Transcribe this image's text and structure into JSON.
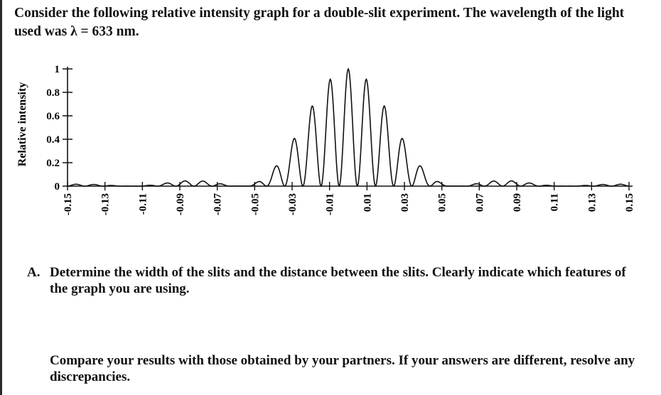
{
  "intro_text": "Consider the following relative intensity graph for a double-slit experiment. The wavelength of the light used was λ = 633 nm.",
  "question_a": {
    "label": "A.",
    "text": "Determine the width of the slits and the distance between the slits. Clearly indicate which features of the graph you are using."
  },
  "question_b": {
    "text": "Compare your results with those obtained by your partners. If your answers are different, resolve any discrepancies."
  },
  "chart_data": {
    "type": "line",
    "ylabel": "Relative intensity",
    "xlabel": "",
    "ylim": [
      0,
      1
    ],
    "xlim": [
      -0.15,
      0.15
    ],
    "y_ticks": [
      "0",
      "0.2",
      "0.4",
      "0.6",
      "0.8",
      "1"
    ],
    "x_ticks": [
      "-0.15",
      "-0.13",
      "-0.11",
      "-0.09",
      "-0.07",
      "-0.05",
      "-0.03",
      "-0.01",
      "0.01",
      "0.03",
      "0.05",
      "0.07",
      "0.09",
      "0.11",
      "0.13",
      "0.15"
    ],
    "x_tick_values": [
      -0.15,
      -0.13,
      -0.11,
      -0.09,
      -0.07,
      -0.05,
      -0.03,
      -0.01,
      0.01,
      0.03,
      0.05,
      0.07,
      0.09,
      0.11,
      0.13,
      0.15
    ],
    "model": {
      "fringe_spacing": 0.0097,
      "single_slit_first_minimum": 0.058
    },
    "peaks": [
      {
        "x": -0.048,
        "y": 0.045
      },
      {
        "x": -0.039,
        "y": 0.12
      },
      {
        "x": -0.029,
        "y": 0.33
      },
      {
        "x": -0.019,
        "y": 0.6
      },
      {
        "x": -0.0097,
        "y": 0.88
      },
      {
        "x": 0.0,
        "y": 1.0
      },
      {
        "x": 0.0097,
        "y": 0.88
      },
      {
        "x": 0.019,
        "y": 0.6
      },
      {
        "x": 0.029,
        "y": 0.33
      },
      {
        "x": 0.039,
        "y": 0.12
      },
      {
        "x": 0.048,
        "y": 0.045
      },
      {
        "x": -0.068,
        "y": 0.045
      },
      {
        "x": 0.068,
        "y": 0.045
      }
    ],
    "grid": false
  }
}
